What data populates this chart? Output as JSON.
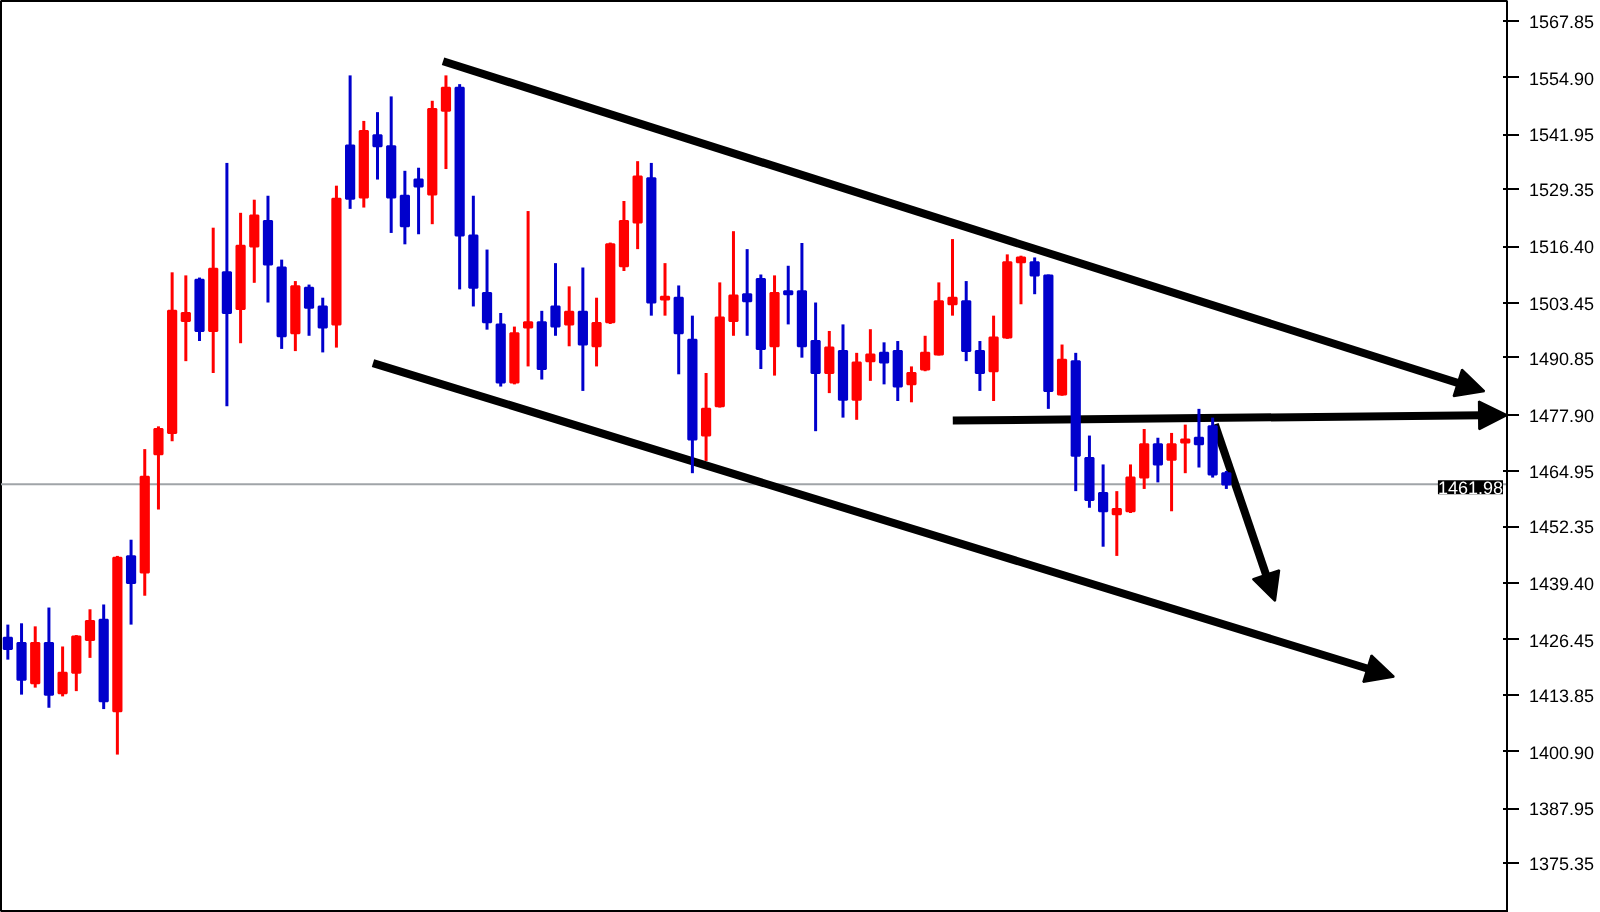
{
  "chart_data": {
    "type": "candlestick",
    "categories": [
      null,
      null,
      null,
      null,
      null,
      null,
      null,
      null,
      null,
      null,
      null,
      null,
      null,
      null,
      null,
      null,
      null,
      null,
      null,
      null,
      null,
      null,
      null,
      null,
      null,
      null,
      null,
      null,
      null,
      null,
      null,
      null,
      null,
      null,
      null,
      null,
      null,
      null,
      null,
      null,
      null,
      null,
      null,
      null,
      null,
      null,
      null,
      null,
      null,
      null,
      null,
      null,
      null,
      null,
      null,
      null,
      null,
      null,
      null,
      null,
      null,
      null,
      null,
      null,
      null,
      null,
      null,
      null,
      null,
      null,
      null,
      null,
      null,
      null,
      null,
      null,
      null,
      null,
      null,
      null,
      null,
      null,
      null,
      null,
      null,
      null,
      null,
      null,
      null,
      null,
      null,
      null,
      null,
      null,
      null,
      null,
      null,
      null,
      null,
      null,
      null,
      null,
      null,
      null,
      null,
      null,
      null,
      null,
      null,
      null
    ],
    "ohlc": [
      [
        1426.9,
        1429.9,
        1421.9,
        1424.3
      ],
      [
        1425.7,
        1430.2,
        1413.9,
        1417.3
      ],
      [
        1416.5,
        1429.5,
        1415.5,
        1425.7
      ],
      [
        1425.7,
        1433.8,
        1410.9,
        1413.9
      ],
      [
        1414.2,
        1424.9,
        1413.5,
        1418.9
      ],
      [
        1418.9,
        1427.5,
        1414.7,
        1427.2
      ],
      [
        1426.4,
        1433.4,
        1422.3,
        1430.7
      ],
      [
        1431.0,
        1434.5,
        1410.6,
        1412.4
      ],
      [
        1410.1,
        1445.6,
        1400.2,
        1445.2
      ],
      [
        1445.5,
        1449.3,
        1429.9,
        1439.4
      ],
      [
        1441.8,
        1470.0,
        1436.5,
        1463.7
      ],
      [
        1468.8,
        1475.2,
        1456.2,
        1474.6
      ],
      [
        1473.7,
        1510.4,
        1471.8,
        1501.6
      ],
      [
        1499.3,
        1509.7,
        1490.1,
        1501.1
      ],
      [
        1508.7,
        1509.2,
        1494.7,
        1497.0
      ],
      [
        1497.0,
        1520.6,
        1487.4,
        1511.2
      ],
      [
        1510.4,
        1535.4,
        1479.8,
        1501.1
      ],
      [
        1502.0,
        1524.0,
        1494.2,
        1516.5
      ],
      [
        1516.3,
        1527.0,
        1508.0,
        1523.4
      ],
      [
        1522.1,
        1527.9,
        1503.5,
        1512.2
      ],
      [
        1511.5,
        1513.3,
        1492.9,
        1495.8
      ],
      [
        1496.5,
        1508.4,
        1492.4,
        1507.2
      ],
      [
        1506.9,
        1507.6,
        1495.9,
        1502.3
      ],
      [
        1502.6,
        1504.6,
        1492.1,
        1497.8
      ],
      [
        1498.5,
        1530.2,
        1493.2,
        1527.2
      ],
      [
        1539.4,
        1555.4,
        1524.9,
        1527.2
      ],
      [
        1527.5,
        1545.0,
        1525.2,
        1542.7
      ],
      [
        1541.7,
        1547.0,
        1531.6,
        1539.2
      ],
      [
        1539.2,
        1550.6,
        1519.4,
        1527.5
      ],
      [
        1527.9,
        1533.6,
        1516.8,
        1520.9
      ],
      [
        1531.6,
        1534.3,
        1519.1,
        1530.0
      ],
      [
        1528.2,
        1549.6,
        1521.4,
        1547.7
      ],
      [
        1547.3,
        1555.4,
        1534.0,
        1552.6
      ],
      [
        1552.6,
        1553.4,
        1506.5,
        1518.8
      ],
      [
        1518.8,
        1527.9,
        1502.6,
        1506.9
      ],
      [
        1505.7,
        1515.6,
        1497.3,
        1499.0
      ],
      [
        1498.5,
        1501.1,
        1484.3,
        1485.2
      ],
      [
        1485.2,
        1498.0,
        1484.8,
        1496.5
      ],
      [
        1497.8,
        1524.4,
        1488.9,
        1499.0
      ],
      [
        1499.0,
        1501.6,
        1485.9,
        1488.3
      ],
      [
        1502.6,
        1512.5,
        1495.9,
        1498.0
      ],
      [
        1498.5,
        1507.2,
        1493.5,
        1501.4
      ],
      [
        1501.4,
        1511.5,
        1483.3,
        1493.9
      ],
      [
        1493.5,
        1504.6,
        1488.9,
        1498.8
      ],
      [
        1499.0,
        1517.2,
        1498.6,
        1516.8
      ],
      [
        1511.8,
        1526.7,
        1510.7,
        1522.1
      ],
      [
        1521.8,
        1535.8,
        1515.7,
        1532.3
      ],
      [
        1531.9,
        1535.4,
        1500.5,
        1503.5
      ],
      [
        1504.2,
        1512.5,
        1500.5,
        1504.8
      ],
      [
        1504.6,
        1507.4,
        1487.1,
        1496.5
      ],
      [
        1495.0,
        1500.5,
        1464.5,
        1472.2
      ],
      [
        1473.1,
        1487.4,
        1467.3,
        1479.2
      ],
      [
        1479.8,
        1508.1,
        1479.5,
        1500.1
      ],
      [
        1499.3,
        1519.8,
        1495.9,
        1505.1
      ],
      [
        1505.4,
        1515.7,
        1495.9,
        1503.8
      ],
      [
        1508.9,
        1509.9,
        1488.3,
        1492.9
      ],
      [
        1493.5,
        1509.7,
        1486.8,
        1505.7
      ],
      [
        1506.1,
        1511.9,
        1498.5,
        1505.4
      ],
      [
        1506.1,
        1517.1,
        1490.9,
        1493.5
      ],
      [
        1494.7,
        1503.5,
        1474.1,
        1487.4
      ],
      [
        1487.4,
        1497.0,
        1482.8,
        1493.2
      ],
      [
        1492.4,
        1498.5,
        1477.2,
        1481.3
      ],
      [
        1481.3,
        1492.0,
        1476.7,
        1489.8
      ],
      [
        1490.1,
        1497.4,
        1485.6,
        1491.6
      ],
      [
        1492.0,
        1494.4,
        1484.8,
        1489.8
      ],
      [
        1492.4,
        1494.7,
        1481.0,
        1484.3
      ],
      [
        1484.8,
        1488.9,
        1480.7,
        1487.4
      ],
      [
        1488.2,
        1495.9,
        1487.8,
        1492.0
      ],
      [
        1491.6,
        1508.1,
        1491.4,
        1503.8
      ],
      [
        1503.1,
        1518.0,
        1500.5,
        1504.6
      ],
      [
        1503.8,
        1508.4,
        1490.1,
        1492.4
      ],
      [
        1492.4,
        1494.7,
        1483.3,
        1487.4
      ],
      [
        1487.8,
        1500.5,
        1481.0,
        1495.5
      ],
      [
        1495.5,
        1514.5,
        1495.2,
        1512.7
      ],
      [
        1512.7,
        1514.2,
        1503.1,
        1513.8
      ],
      [
        1512.7,
        1513.8,
        1505.4,
        1509.7
      ],
      [
        1509.7,
        1509.9,
        1479.2,
        1483.3
      ],
      [
        1482.5,
        1493.9,
        1482.2,
        1490.4
      ],
      [
        1490.1,
        1492.0,
        1460.4,
        1468.5
      ],
      [
        1468.0,
        1473.1,
        1456.6,
        1458.4
      ],
      [
        1460.0,
        1466.5,
        1447.7,
        1455.8
      ],
      [
        1455.1,
        1460.4,
        1445.6,
        1456.3
      ],
      [
        1455.8,
        1466.5,
        1455.4,
        1463.5
      ],
      [
        1463.5,
        1474.6,
        1460.9,
        1471.1
      ],
      [
        1471.1,
        1472.6,
        1462.4,
        1466.5
      ],
      [
        1467.6,
        1473.7,
        1455.8,
        1471.1
      ],
      [
        1471.5,
        1475.6,
        1464.5,
        1472.2
      ],
      [
        1472.6,
        1479.2,
        1465.8,
        1471.1
      ],
      [
        1475.2,
        1477.2,
        1463.5,
        1464.2
      ],
      [
        1464.5,
        1465.0,
        1460.9,
        1461.9
      ],
      null,
      null,
      null,
      null,
      null,
      null,
      null,
      null,
      null,
      null,
      null,
      null,
      null,
      null,
      null,
      null,
      null,
      null,
      null,
      null
    ],
    "colors": [
      "#0000cc",
      "#0000cc",
      "#ff0000",
      "#0000cc",
      "#ff0000",
      "#ff0000",
      "#ff0000",
      "#0000cc",
      "#ff0000",
      "#0000cc",
      "#ff0000",
      "#ff0000",
      "#ff0000",
      "#ff0000",
      "#0000cc",
      "#ff0000",
      "#0000cc",
      "#ff0000",
      "#ff0000",
      "#0000cc",
      "#0000cc",
      "#ff0000",
      "#0000cc",
      "#0000cc",
      "#ff0000",
      "#0000cc",
      "#ff0000",
      "#0000cc",
      "#0000cc",
      "#0000cc",
      "#0000cc",
      "#ff0000",
      "#ff0000",
      "#0000cc",
      "#0000cc",
      "#0000cc",
      "#0000cc",
      "#ff0000",
      "#ff0000",
      "#0000cc",
      "#0000cc",
      "#ff0000",
      "#0000cc",
      "#ff0000",
      "#ff0000",
      "#ff0000",
      "#ff0000",
      "#0000cc",
      "#ff0000",
      "#0000cc",
      "#0000cc",
      "#ff0000",
      "#ff0000",
      "#ff0000",
      "#0000cc",
      "#0000cc",
      "#ff0000",
      "#0000cc",
      "#0000cc",
      "#0000cc",
      "#ff0000",
      "#0000cc",
      "#ff0000",
      "#ff0000",
      "#0000cc",
      "#0000cc",
      "#ff0000",
      "#ff0000",
      "#ff0000",
      "#ff0000",
      "#0000cc",
      "#0000cc",
      "#ff0000",
      "#ff0000",
      "#ff0000",
      "#0000cc",
      "#0000cc",
      "#ff0000",
      "#0000cc",
      "#0000cc",
      "#0000cc",
      "#ff0000",
      "#ff0000",
      "#ff0000",
      "#0000cc",
      "#ff0000",
      "#ff0000",
      "#0000cc",
      "#0000cc",
      "#0000cc",
      null,
      null,
      null,
      null,
      null,
      null,
      null,
      null,
      null,
      null,
      null,
      null,
      null,
      null,
      null,
      null,
      null,
      null,
      null,
      null
    ],
    "ylim": [
      1364,
      1572.4
    ],
    "yticks": [
      {
        "value": 1375.35,
        "label": "1375.35"
      },
      {
        "value": 1387.95,
        "label": "1387.95"
      },
      {
        "value": 1400.9,
        "label": "1400.90"
      },
      {
        "value": 1413.85,
        "label": "1413.85"
      },
      {
        "value": 1426.45,
        "label": "1426.45"
      },
      {
        "value": 1439.4,
        "label": "1439.40"
      },
      {
        "value": 1452.35,
        "label": "1452.35"
      },
      {
        "value": 1464.95,
        "label": "1464.95"
      },
      {
        "value": 1477.9,
        "label": "1477.90"
      },
      {
        "value": 1490.85,
        "label": "1490.85"
      },
      {
        "value": 1503.45,
        "label": "1503.45"
      },
      {
        "value": 1516.4,
        "label": "1516.40"
      },
      {
        "value": 1529.35,
        "label": "1529.35"
      },
      {
        "value": 1541.95,
        "label": "1541.95"
      },
      {
        "value": 1554.9,
        "label": "1554.90"
      },
      {
        "value": 1567.85,
        "label": "1567.85"
      }
    ],
    "ref_lines": [
      {
        "axis": "y",
        "value": 1461.98,
        "label": "1461.98",
        "color": "#a0a4a8"
      }
    ],
    "tick_labels": "y",
    "grid": false
  }
}
